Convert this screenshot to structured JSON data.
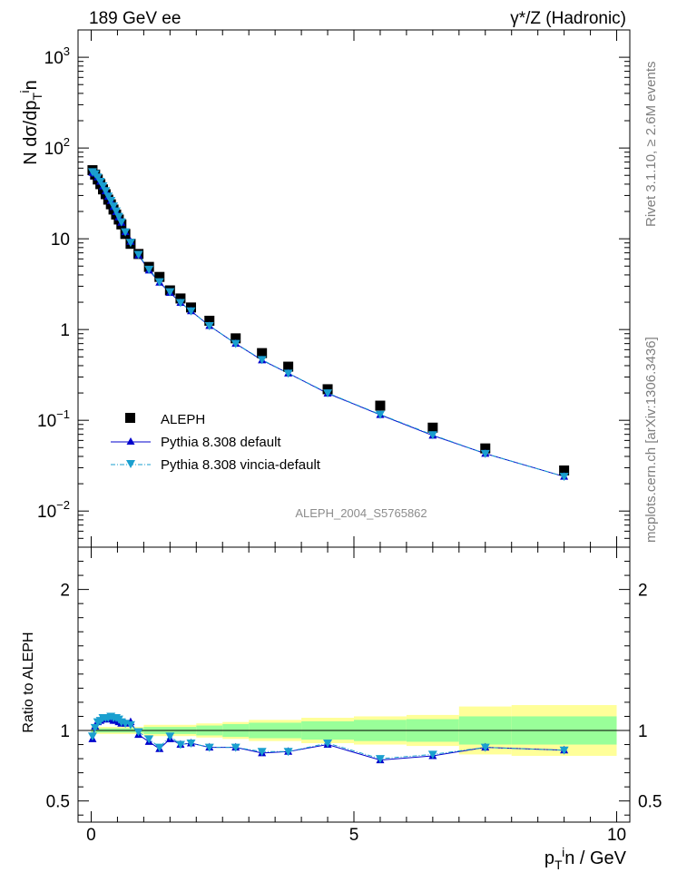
{
  "header": {
    "energy_label": "189 GeV ee",
    "process_label": "γ*/Z (Hadronic)"
  },
  "side": {
    "rivet": "Rivet 3.1.10, ≥ 2.6M events",
    "mcplots": "mcplots.cern.ch [arXiv:1306.3436]"
  },
  "watermark": "ALEPH_2004_S5765862",
  "legend": {
    "items": [
      {
        "label": "ALEPH",
        "marker": "square",
        "color": "#000000"
      },
      {
        "label": "Pythia 8.308 default",
        "marker": "triangle-up",
        "color": "#0000cc"
      },
      {
        "label": "Pythia 8.308 vincia-default",
        "marker": "triangle-down",
        "color": "#1a9fcf"
      }
    ]
  },
  "colors": {
    "data": "#000000",
    "default": "#0000cc",
    "vincia": "#1a9fcf",
    "band_inner": "#99ff99",
    "band_outer": "#ffff99"
  },
  "chart_data": [
    {
      "type": "scatter",
      "panel": "main",
      "ylabel": "N dσ/dp_T^in",
      "yscale": "log",
      "ylim": [
        0.004,
        2000
      ],
      "xlim": [
        -0.25,
        10.25
      ],
      "y_ticks": [
        "10^-2",
        "10^-1",
        "1",
        "10",
        "10^2",
        "10^3"
      ],
      "series": [
        {
          "name": "ALEPH",
          "x": [
            0.025,
            0.075,
            0.125,
            0.175,
            0.225,
            0.275,
            0.325,
            0.375,
            0.425,
            0.475,
            0.525,
            0.575,
            0.65,
            0.75,
            0.9,
            1.1,
            1.3,
            1.5,
            1.7,
            1.9,
            2.25,
            2.75,
            3.25,
            3.75,
            4.5,
            5.5,
            6.5,
            7.5,
            9.0
          ],
          "y": [
            57,
            51,
            45,
            40,
            35,
            31,
            27,
            24,
            21,
            18.5,
            16.3,
            14.4,
            11.3,
            8.8,
            6.8,
            4.9,
            3.8,
            2.7,
            2.2,
            1.75,
            1.25,
            0.8,
            0.55,
            0.39,
            0.22,
            0.145,
            0.083,
            0.049,
            0.028
          ]
        },
        {
          "name": "Pythia 8.308 default",
          "x": [
            0.025,
            0.075,
            0.125,
            0.175,
            0.225,
            0.275,
            0.325,
            0.375,
            0.425,
            0.475,
            0.525,
            0.575,
            0.65,
            0.75,
            0.9,
            1.1,
            1.3,
            1.5,
            1.7,
            1.9,
            2.25,
            2.75,
            3.25,
            3.75,
            4.5,
            5.5,
            6.5,
            7.5,
            9.0
          ],
          "y": [
            53.6,
            52.5,
            47.7,
            42.8,
            37.8,
            33.5,
            29.2,
            26.2,
            22.5,
            19.8,
            17.3,
            15.1,
            11.9,
            9.3,
            6.6,
            4.5,
            3.3,
            2.55,
            1.98,
            1.6,
            1.1,
            0.7,
            0.46,
            0.33,
            0.198,
            0.115,
            0.068,
            0.043,
            0.024
          ]
        },
        {
          "name": "Pythia 8.308 vincia-default",
          "x": [
            0.025,
            0.075,
            0.125,
            0.175,
            0.225,
            0.275,
            0.325,
            0.375,
            0.425,
            0.475,
            0.525,
            0.575,
            0.65,
            0.75,
            0.9,
            1.1,
            1.3,
            1.5,
            1.7,
            1.9,
            2.25,
            2.75,
            3.25,
            3.75,
            4.5,
            5.5,
            6.5,
            7.5,
            9.0
          ],
          "y": [
            54.7,
            52.0,
            47.7,
            42.8,
            38.2,
            33.8,
            29.4,
            26.4,
            22.9,
            20.2,
            17.6,
            15.3,
            11.9,
            9.1,
            6.7,
            4.6,
            3.35,
            2.6,
            1.98,
            1.6,
            1.1,
            0.7,
            0.465,
            0.33,
            0.2,
            0.116,
            0.069,
            0.043,
            0.024
          ]
        }
      ]
    },
    {
      "type": "scatter",
      "panel": "ratio",
      "xlabel": "p_T^in / GeV",
      "ylabel": "Ratio to ALEPH",
      "ylim": [
        0.35,
        2.3
      ],
      "xlim": [
        -0.25,
        10.25
      ],
      "x_ticks": [
        0,
        5,
        10
      ],
      "y_ticks": [
        0.5,
        1,
        2
      ],
      "series": [
        {
          "name": "Pythia 8.308 default",
          "x": [
            0.025,
            0.075,
            0.125,
            0.175,
            0.225,
            0.275,
            0.325,
            0.375,
            0.425,
            0.475,
            0.525,
            0.575,
            0.65,
            0.75,
            0.9,
            1.1,
            1.3,
            1.5,
            1.7,
            1.9,
            2.25,
            2.75,
            3.25,
            3.75,
            4.5,
            5.5,
            6.5,
            7.5,
            9.0
          ],
          "y": [
            0.94,
            1.03,
            1.06,
            1.07,
            1.08,
            1.08,
            1.08,
            1.09,
            1.07,
            1.07,
            1.06,
            1.05,
            1.05,
            1.06,
            0.97,
            0.92,
            0.87,
            0.94,
            0.9,
            0.91,
            0.88,
            0.88,
            0.84,
            0.85,
            0.9,
            0.79,
            0.82,
            0.88,
            0.86
          ]
        },
        {
          "name": "Pythia 8.308 vincia-default",
          "x": [
            0.025,
            0.075,
            0.125,
            0.175,
            0.225,
            0.275,
            0.325,
            0.375,
            0.425,
            0.475,
            0.525,
            0.575,
            0.65,
            0.75,
            0.9,
            1.1,
            1.3,
            1.5,
            1.7,
            1.9,
            2.25,
            2.75,
            3.25,
            3.75,
            4.5,
            5.5,
            6.5,
            7.5,
            9.0
          ],
          "y": [
            0.96,
            1.02,
            1.06,
            1.07,
            1.09,
            1.09,
            1.09,
            1.1,
            1.09,
            1.09,
            1.08,
            1.06,
            1.05,
            1.04,
            0.99,
            0.94,
            0.88,
            0.96,
            0.9,
            0.91,
            0.88,
            0.88,
            0.85,
            0.85,
            0.91,
            0.8,
            0.83,
            0.88,
            0.86
          ]
        }
      ],
      "uncertainty_band": {
        "x_edges": [
          0,
          1,
          2,
          2.5,
          3,
          4,
          5,
          6,
          7,
          8,
          10
        ],
        "inner_half": [
          0.015,
          0.025,
          0.035,
          0.045,
          0.055,
          0.065,
          0.075,
          0.08,
          0.1,
          0.1
        ],
        "outer_half": [
          0.025,
          0.04,
          0.05,
          0.06,
          0.075,
          0.09,
          0.1,
          0.11,
          0.17,
          0.18
        ]
      }
    }
  ]
}
